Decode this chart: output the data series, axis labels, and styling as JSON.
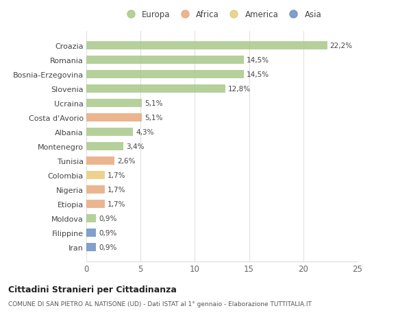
{
  "countries": [
    "Croazia",
    "Romania",
    "Bosnia-Erzegovina",
    "Slovenia",
    "Ucraina",
    "Costa d'Avorio",
    "Albania",
    "Montenegro",
    "Tunisia",
    "Colombia",
    "Nigeria",
    "Etiopia",
    "Moldova",
    "Filippine",
    "Iran"
  ],
  "values": [
    22.2,
    14.5,
    14.5,
    12.8,
    5.1,
    5.1,
    4.3,
    3.4,
    2.6,
    1.7,
    1.7,
    1.7,
    0.9,
    0.9,
    0.9
  ],
  "labels": [
    "22,2%",
    "14,5%",
    "14,5%",
    "12,8%",
    "5,1%",
    "5,1%",
    "4,3%",
    "3,4%",
    "2,6%",
    "1,7%",
    "1,7%",
    "1,7%",
    "0,9%",
    "0,9%",
    "0,9%"
  ],
  "continents": [
    "Europa",
    "Europa",
    "Europa",
    "Europa",
    "Europa",
    "Africa",
    "Europa",
    "Europa",
    "Africa",
    "America",
    "Africa",
    "Africa",
    "Europa",
    "Asia",
    "Asia"
  ],
  "continent_colors": {
    "Europa": "#a8c88a",
    "Africa": "#e8a87c",
    "America": "#e8cc7c",
    "Asia": "#6b8fc4"
  },
  "legend_order": [
    "Europa",
    "Africa",
    "America",
    "Asia"
  ],
  "xlim": [
    0,
    25
  ],
  "xticks": [
    0,
    5,
    10,
    15,
    20,
    25
  ],
  "title": "Cittadini Stranieri per Cittadinanza",
  "subtitle": "COMUNE DI SAN PIETRO AL NATISONE (UD) - Dati ISTAT al 1° gennaio - Elaborazione TUTTITALIA.IT",
  "bg_color": "#ffffff",
  "bar_height": 0.55
}
